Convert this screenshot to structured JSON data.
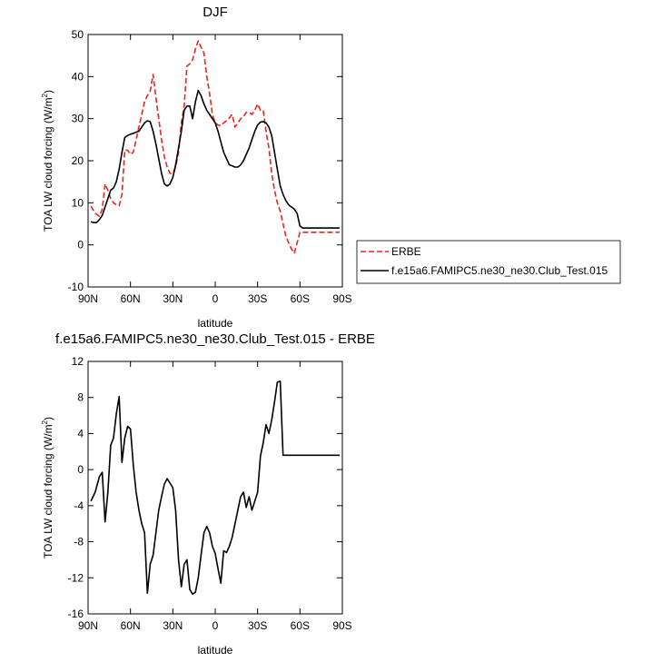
{
  "chart_data": [
    {
      "type": "line",
      "title": "DJF",
      "xlabel": "latitude",
      "ylabel": "TOA LW cloud forcing (W/m",
      "ylabel_sup": "2",
      "ylabel_end": ")",
      "xlim": [
        90,
        -90
      ],
      "ylim": [
        -10,
        50
      ],
      "xticks": [
        {
          "value": 90,
          "label": "90N"
        },
        {
          "value": 60,
          "label": "60N"
        },
        {
          "value": 30,
          "label": "30N"
        },
        {
          "value": 0,
          "label": "0"
        },
        {
          "value": -30,
          "label": "30S"
        },
        {
          "value": -60,
          "label": "60S"
        },
        {
          "value": -90,
          "label": "90S"
        }
      ],
      "yticks": [
        -10,
        0,
        10,
        20,
        30,
        40,
        50
      ],
      "legend_position": "right",
      "series": [
        {
          "name": "ERBE",
          "color": "#e8251e",
          "dash": "dashed",
          "x": [
            88,
            85,
            82,
            80,
            78,
            76,
            74,
            72,
            70,
            68,
            66,
            64,
            62,
            60,
            58,
            56,
            54,
            52,
            50,
            48,
            46,
            44,
            42,
            40,
            38,
            36,
            34,
            32,
            30,
            28,
            26,
            24,
            22,
            20,
            18,
            16,
            14,
            12,
            10,
            8,
            6,
            4,
            2,
            0,
            -2,
            -4,
            -6,
            -8,
            -10,
            -12,
            -14,
            -16,
            -18,
            -20,
            -22,
            -24,
            -26,
            -28,
            -30,
            -32,
            -34,
            -36,
            -38,
            -40,
            -42,
            -44,
            -46,
            -48,
            -50,
            -52,
            -54,
            -56,
            -58,
            -60,
            -62,
            -64,
            -66,
            -68,
            -70,
            -72,
            -74,
            -76,
            -78,
            -80,
            -82,
            -84,
            -86,
            -88
          ],
          "values": [
            9.2,
            7.5,
            6.8,
            8.5,
            14.5,
            13.0,
            11.0,
            10.0,
            9.5,
            9.3,
            12.0,
            22.5,
            22.5,
            21.5,
            22.0,
            25.0,
            28.0,
            31.0,
            34.0,
            35.5,
            36.5,
            40.5,
            35.0,
            30.0,
            25.0,
            21.0,
            18.5,
            17.0,
            17.0,
            18.5,
            22.0,
            29.0,
            33.0,
            42.5,
            43.0,
            44.0,
            46.5,
            48.5,
            47.0,
            45.5,
            40.0,
            36.0,
            31.0,
            29.0,
            28.5,
            28.3,
            29.0,
            29.5,
            30.2,
            31.0,
            28.0,
            29.0,
            30.0,
            30.5,
            31.5,
            31.5,
            31.0,
            32.0,
            33.5,
            32.0,
            32.0,
            27.0,
            23.0,
            17.0,
            13.0,
            10.0,
            8.0,
            5.0,
            2.0,
            0.5,
            -1.0,
            -2.0,
            0.5,
            3.0,
            3.0,
            3.0,
            3.0,
            3.0,
            3.0,
            3.0,
            3.0,
            3.0,
            3.0,
            3.0,
            3.0,
            3.0,
            3.0,
            3.0
          ]
        },
        {
          "name": "f.e15a6.FAMIPC5.ne30_ne30.Club_Test.015",
          "color": "#000000",
          "dash": "solid",
          "x": [
            88,
            86,
            84,
            82,
            80,
            78,
            76,
            74,
            72,
            70,
            68,
            66,
            64,
            62,
            60,
            58,
            56,
            54,
            52,
            50,
            48,
            46,
            44,
            42,
            40,
            38,
            36,
            34,
            32,
            30,
            28,
            26,
            24,
            22,
            20,
            18,
            16,
            14,
            12,
            10,
            8,
            6,
            4,
            2,
            0,
            -2,
            -4,
            -6,
            -8,
            -10,
            -12,
            -14,
            -16,
            -18,
            -20,
            -22,
            -24,
            -26,
            -28,
            -30,
            -32,
            -34,
            -36,
            -38,
            -40,
            -42,
            -44,
            -46,
            -48,
            -50,
            -52,
            -54,
            -56,
            -58,
            -60,
            -62,
            -64,
            -66,
            -68,
            -70,
            -72,
            -74,
            -76,
            -78,
            -80,
            -82,
            -84,
            -86,
            -88
          ],
          "values": [
            5.5,
            5.3,
            5.3,
            6.0,
            7.0,
            9.0,
            11.0,
            13.0,
            13.5,
            15.0,
            18.0,
            22.0,
            25.5,
            26.0,
            26.3,
            26.5,
            26.8,
            27.0,
            28.0,
            29.0,
            29.5,
            29.3,
            27.0,
            24.0,
            20.5,
            17.0,
            14.5,
            14.0,
            14.5,
            16.0,
            19.0,
            23.0,
            27.0,
            32.0,
            33.0,
            33.0,
            30.0,
            34.0,
            36.7,
            35.5,
            33.5,
            32.0,
            31.0,
            30.0,
            29.0,
            27.0,
            24.5,
            22.0,
            20.5,
            19.0,
            18.8,
            18.5,
            18.5,
            19.0,
            20.0,
            21.5,
            23.0,
            25.0,
            27.0,
            28.5,
            29.2,
            29.3,
            29.0,
            28.0,
            26.0,
            22.0,
            18.0,
            14.0,
            12.0,
            10.5,
            9.5,
            9.0,
            8.5,
            7.5,
            4.5,
            4.0,
            4.0,
            4.0,
            4.0,
            4.0,
            4.0,
            4.0,
            4.0,
            4.0,
            4.0,
            4.0,
            4.0,
            4.0,
            4.0
          ]
        }
      ]
    },
    {
      "type": "line",
      "title": "f.e15a6.FAMIPC5.ne30_ne30.Club_Test.015 - ERBE",
      "xlabel": "latitude",
      "ylabel": "TOA LW cloud forcing (W/m",
      "ylabel_sup": "2",
      "ylabel_end": ")",
      "xlim": [
        90,
        -90
      ],
      "ylim": [
        -16,
        12
      ],
      "xticks": [
        {
          "value": 90,
          "label": "90N"
        },
        {
          "value": 60,
          "label": "60N"
        },
        {
          "value": 30,
          "label": "30N"
        },
        {
          "value": 0,
          "label": "0"
        },
        {
          "value": -30,
          "label": "30S"
        },
        {
          "value": -60,
          "label": "60S"
        },
        {
          "value": -90,
          "label": "90S"
        }
      ],
      "yticks": [
        -16,
        -12,
        -8,
        -4,
        0,
        4,
        8,
        12
      ],
      "series": [
        {
          "color": "#000000",
          "dash": "solid",
          "x": [
            88,
            85,
            82,
            80,
            78,
            76,
            74,
            72,
            70,
            68,
            66,
            64,
            62,
            60,
            58,
            56,
            54,
            52,
            50,
            48,
            46,
            44,
            42,
            40,
            38,
            36,
            34,
            32,
            30,
            28,
            26,
            24,
            22,
            20,
            18,
            16,
            14,
            12,
            10,
            8,
            6,
            4,
            2,
            0,
            -2,
            -4,
            -6,
            -8,
            -10,
            -12,
            -14,
            -16,
            -18,
            -20,
            -22,
            -24,
            -26,
            -28,
            -30,
            -32,
            -34,
            -36,
            -38,
            -40,
            -42,
            -44,
            -46,
            -48,
            -50,
            -52,
            -54,
            -56,
            -58,
            -60,
            -62,
            -64,
            -66,
            -68,
            -70,
            -72,
            -74,
            -76,
            -78,
            -80,
            -82,
            -84,
            -86,
            -88
          ],
          "values": [
            -3.5,
            -2.5,
            -0.8,
            -0.3,
            -5.8,
            -2.5,
            2.7,
            3.5,
            6.2,
            8.1,
            0.8,
            3.5,
            4.8,
            4.5,
            0.5,
            -2.5,
            -4.5,
            -6.0,
            -7.0,
            -13.7,
            -10.5,
            -9.5,
            -7.0,
            -4.5,
            -3.0,
            -1.6,
            -1.0,
            -1.5,
            -2.0,
            -4.5,
            -10.0,
            -13.0,
            -10.5,
            -10.0,
            -13.3,
            -13.8,
            -13.6,
            -12.0,
            -9.5,
            -7.0,
            -6.3,
            -7.0,
            -8.5,
            -9.3,
            -11.0,
            -12.6,
            -9.0,
            -9.2,
            -8.5,
            -7.5,
            -6.0,
            -4.5,
            -3.0,
            -2.5,
            -4.2,
            -3.0,
            -4.5,
            -3.5,
            -2.5,
            1.5,
            3.0,
            5.0,
            4.0,
            5.5,
            7.5,
            9.7,
            9.8,
            1.6,
            1.6,
            1.6,
            1.6,
            1.6,
            1.6,
            1.6,
            1.6,
            1.6,
            1.6,
            1.6,
            1.6,
            1.6,
            1.6,
            1.6,
            1.6,
            1.6,
            1.6,
            1.6,
            1.6,
            1.6
          ]
        }
      ]
    }
  ]
}
